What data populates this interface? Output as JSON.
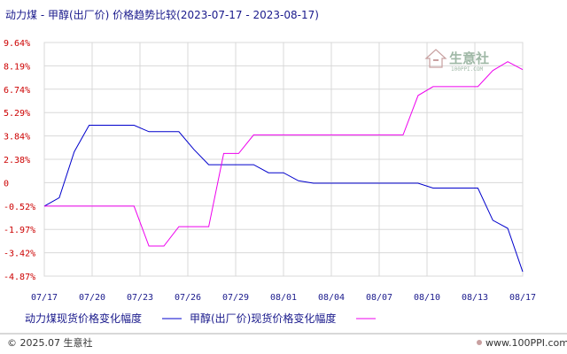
{
  "chart_data": {
    "type": "line",
    "title": "动力煤 - 甲醇(出厂价) 价格趋势比较(2023-07-17 - 2023-08-17)",
    "ylim": [
      -4.87,
      9.64
    ],
    "y_ticks": [
      "9.64%",
      "8.19%",
      "6.74%",
      "5.29%",
      "3.84%",
      "2.38%",
      "0",
      "-0.52%",
      "-1.97%",
      "-3.42%",
      "-4.87%"
    ],
    "x_ticks": [
      "07/17",
      "07/20",
      "07/23",
      "07/26",
      "07/29",
      "08/01",
      "08/04",
      "08/07",
      "08/10",
      "08/13",
      "08/17"
    ],
    "grid": true,
    "legend_position": "bottom",
    "series": [
      {
        "name": "动力煤现货价格变化幅度",
        "color": "#0000cc",
        "points": [
          [
            0,
            -0.52
          ],
          [
            1,
            0
          ],
          [
            2,
            2.85
          ],
          [
            3,
            4.5
          ],
          [
            4,
            4.5
          ],
          [
            5,
            4.5
          ],
          [
            6,
            4.5
          ],
          [
            7,
            4.1
          ],
          [
            8,
            4.1
          ],
          [
            9,
            4.1
          ],
          [
            10,
            3.0
          ],
          [
            11,
            2.05
          ],
          [
            12,
            2.05
          ],
          [
            13,
            2.05
          ],
          [
            14,
            2.05
          ],
          [
            15,
            1.55
          ],
          [
            16,
            1.55
          ],
          [
            17,
            1.05
          ],
          [
            18,
            0.9
          ],
          [
            19,
            0.9
          ],
          [
            20,
            0.9
          ],
          [
            21,
            0.9
          ],
          [
            22,
            0.9
          ],
          [
            23,
            0.9
          ],
          [
            24,
            0.9
          ],
          [
            25,
            0.9
          ],
          [
            26,
            0.6
          ],
          [
            27,
            0.6
          ],
          [
            28,
            0.6
          ],
          [
            29,
            0.6
          ],
          [
            30,
            -1.4
          ],
          [
            31,
            -1.9
          ],
          [
            32,
            -4.6
          ]
        ]
      },
      {
        "name": "甲醇(出厂价)现货价格变化幅度",
        "color": "#ee00ee",
        "points": [
          [
            0,
            -0.52
          ],
          [
            1,
            -0.52
          ],
          [
            2,
            -0.52
          ],
          [
            3,
            -0.52
          ],
          [
            4,
            -0.52
          ],
          [
            5,
            -0.52
          ],
          [
            6,
            -0.52
          ],
          [
            7,
            -3.0
          ],
          [
            8,
            -3.0
          ],
          [
            9,
            -1.8
          ],
          [
            10,
            -1.8
          ],
          [
            11,
            -1.8
          ],
          [
            12,
            2.75
          ],
          [
            13,
            2.75
          ],
          [
            14,
            3.9
          ],
          [
            15,
            3.9
          ],
          [
            16,
            3.9
          ],
          [
            17,
            3.9
          ],
          [
            18,
            3.9
          ],
          [
            19,
            3.9
          ],
          [
            20,
            3.9
          ],
          [
            21,
            3.9
          ],
          [
            22,
            3.9
          ],
          [
            23,
            3.9
          ],
          [
            24,
            3.9
          ],
          [
            25,
            6.35
          ],
          [
            26,
            6.9
          ],
          [
            27,
            6.9
          ],
          [
            28,
            6.9
          ],
          [
            29,
            6.9
          ],
          [
            30,
            7.9
          ],
          [
            31,
            8.45
          ],
          [
            32,
            7.95
          ]
        ]
      }
    ]
  },
  "watermark": {
    "text": "生意社",
    "sub": "100PPI.COM"
  },
  "footer": {
    "left": "© 2025.07 生意社",
    "right": "www.100PPI.com"
  }
}
